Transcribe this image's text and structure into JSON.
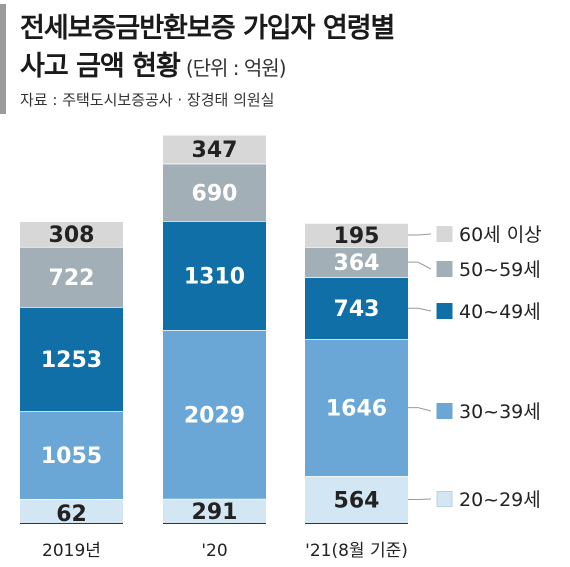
{
  "header": {
    "title_line1": "전세보증금반환보증 가입자 연령별",
    "title_line2": "사고 금액 현황",
    "unit": "(단위 : 억원)",
    "source": "자료 : 주택도시보증공사 · 장경태 의원실"
  },
  "chart_data": {
    "type": "bar",
    "stacked": true,
    "categories": [
      "2019년",
      "'20",
      "'21(8월 기준)"
    ],
    "series": [
      {
        "name": "20~29세",
        "values": [
          62,
          291,
          564
        ],
        "color": "#d3e6f3",
        "text_color": "#222222"
      },
      {
        "name": "30~39세",
        "values": [
          1055,
          2029,
          1646
        ],
        "color": "#6aa7d6",
        "text_color": "#ffffff"
      },
      {
        "name": "40~49세",
        "values": [
          1253,
          1310,
          743
        ],
        "color": "#0f6fa6",
        "text_color": "#ffffff"
      },
      {
        "name": "50~59세",
        "values": [
          722,
          690,
          364
        ],
        "color": "#a3afb7",
        "text_color": "#ffffff"
      },
      {
        "name": "60세 이상",
        "values": [
          308,
          347,
          195
        ],
        "color": "#d7d7d7",
        "text_color": "#222222"
      }
    ],
    "legend_order": [
      "60세 이상",
      "50~59세",
      "40~49세",
      "30~39세",
      "20~29세"
    ],
    "legend_position": "right"
  }
}
